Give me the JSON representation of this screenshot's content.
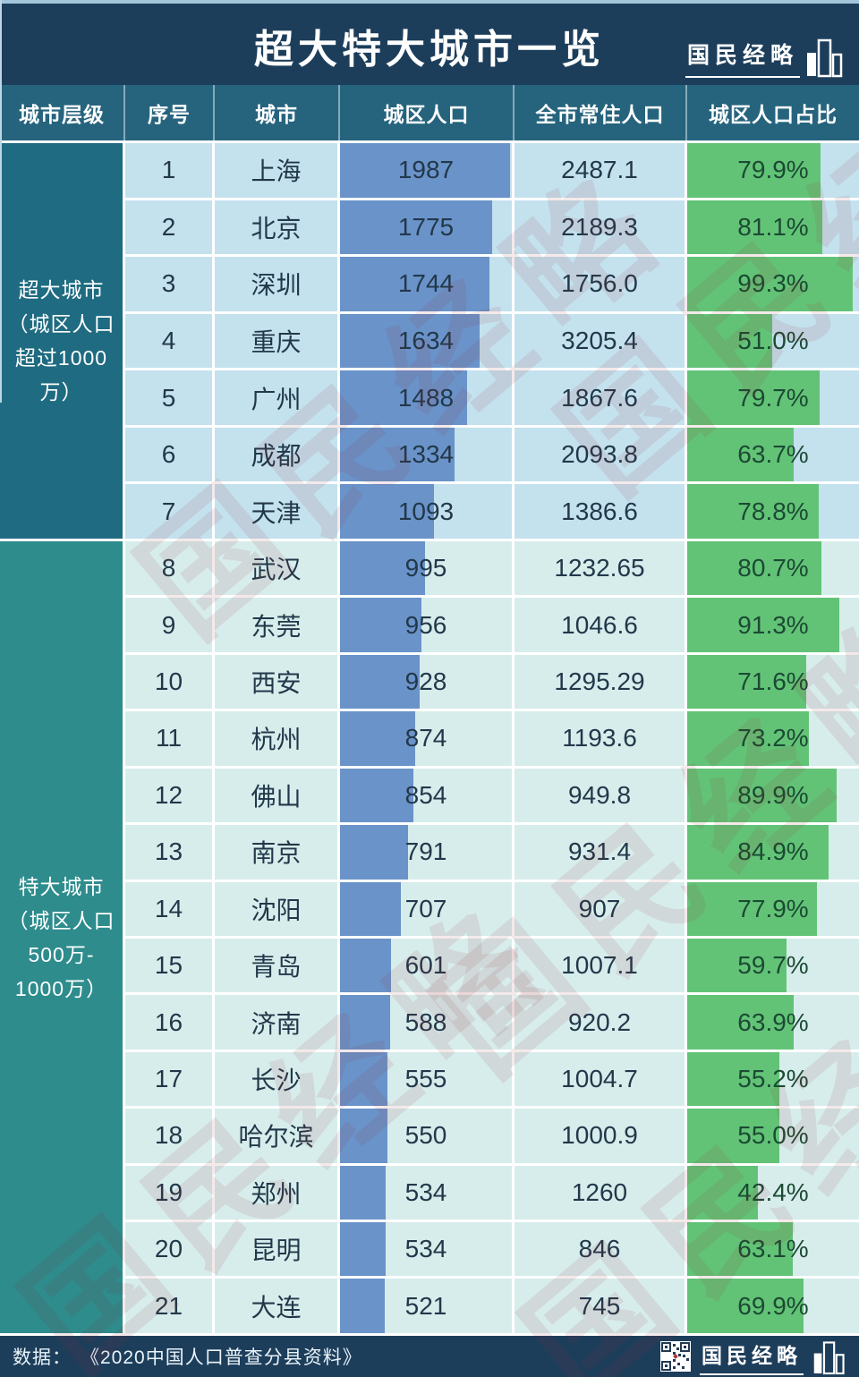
{
  "title": "超大特大城市一览",
  "brand": {
    "name": "国民经略"
  },
  "watermark": {
    "text": "国民经略"
  },
  "footer": {
    "source_label": "数据：",
    "source_text": "《2020中国人口普查分县资料》"
  },
  "colors": {
    "title_band_bg": "#1d3e5b",
    "header_bg": "#26647e",
    "group1_label_bg": "#1f6b81",
    "group2_label_bg": "#2e8c8d",
    "group1_row_bg": "#c4e1ee",
    "group2_row_bg": "#d7edec",
    "urban_bar_blue": "#6a93c9",
    "pct_bar_green": "#62c377",
    "watermark_red": "#96283480"
  },
  "chart_data": {
    "type": "table",
    "columns": [
      "城市层级",
      "序号",
      "城市",
      "城区人口",
      "全市常住人口",
      "城区人口占比"
    ],
    "bar_scale": {
      "urban_max": 1987,
      "pct_max": 100
    },
    "bar_columns": {
      "城区人口": "blue bar, left-aligned, scaled to max 1987",
      "城区人口占比": "green bar, left-aligned, scaled to 100%"
    },
    "groups": [
      {
        "tier_label": "超大城市（城区人口超过1000万）",
        "label_lines": [
          "超大城市",
          "（城区人口",
          "超过1000",
          "万）"
        ],
        "rows": [
          [
            "1",
            "上海",
            "1987",
            "2487.1",
            "79.9%"
          ],
          [
            "2",
            "北京",
            "1775",
            "2189.3",
            "81.1%"
          ],
          [
            "3",
            "深圳",
            "1744",
            "1756.0",
            "99.3%"
          ],
          [
            "4",
            "重庆",
            "1634",
            "3205.4",
            "51.0%"
          ],
          [
            "5",
            "广州",
            "1488",
            "1867.6",
            "79.7%"
          ],
          [
            "6",
            "成都",
            "1334",
            "2093.8",
            "63.7%"
          ],
          [
            "7",
            "天津",
            "1093",
            "1386.6",
            "78.8%"
          ]
        ]
      },
      {
        "tier_label": "特大城市（城区人口500万-1000万）",
        "label_lines": [
          "特大城市",
          "（城区人口",
          "500万-",
          "1000万）"
        ],
        "rows": [
          [
            "8",
            "武汉",
            "995",
            "1232.65",
            "80.7%"
          ],
          [
            "9",
            "东莞",
            "956",
            "1046.6",
            "91.3%"
          ],
          [
            "10",
            "西安",
            "928",
            "1295.29",
            "71.6%"
          ],
          [
            "11",
            "杭州",
            "874",
            "1193.6",
            "73.2%"
          ],
          [
            "12",
            "佛山",
            "854",
            "949.8",
            "89.9%"
          ],
          [
            "13",
            "南京",
            "791",
            "931.4",
            "84.9%"
          ],
          [
            "14",
            "沈阳",
            "707",
            "907",
            "77.9%"
          ],
          [
            "15",
            "青岛",
            "601",
            "1007.1",
            "59.7%"
          ],
          [
            "16",
            "济南",
            "588",
            "920.2",
            "63.9%"
          ],
          [
            "17",
            "长沙",
            "555",
            "1004.7",
            "55.2%"
          ],
          [
            "18",
            "哈尔滨",
            "550",
            "1000.9",
            "55.0%"
          ],
          [
            "19",
            "郑州",
            "534",
            "1260",
            "42.4%"
          ],
          [
            "20",
            "昆明",
            "534",
            "846",
            "63.1%"
          ],
          [
            "21",
            "大连",
            "521",
            "745",
            "69.9%"
          ]
        ]
      }
    ]
  }
}
